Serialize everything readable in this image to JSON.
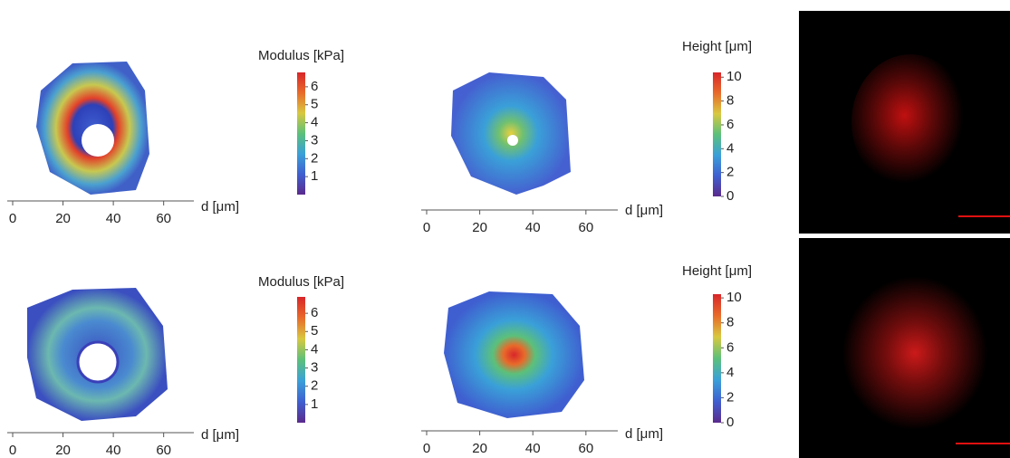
{
  "chart_data": [
    {
      "type": "heatmap",
      "xlabel": "d [μm]",
      "xlim": [
        0,
        72
      ],
      "xticks": [
        0,
        20,
        40,
        60
      ],
      "colorbar": {
        "title": "Modulus [kPa]",
        "lim": [
          0,
          6.8
        ],
        "ticks": [
          1,
          2,
          3,
          4,
          5,
          6
        ]
      },
      "colormap": [
        "#5a2a8c",
        "#3f5fd0",
        "#3aa0d8",
        "#5cc07a",
        "#d8c840",
        "#e86a2a",
        "#d8262a"
      ]
    },
    {
      "type": "heatmap",
      "xlabel": "d [μm]",
      "xlim": [
        0,
        72
      ],
      "xticks": [
        0,
        20,
        40,
        60
      ],
      "colorbar": {
        "title": "Height [μm]",
        "lim": [
          0,
          10.4
        ],
        "ticks": [
          0,
          2,
          4,
          6,
          8,
          10
        ]
      },
      "colormap": [
        "#5a2a8c",
        "#3f5fd0",
        "#3aa0d8",
        "#5cc07a",
        "#d8c840",
        "#e86a2a",
        "#d8262a"
      ]
    },
    {
      "type": "heatmap",
      "xlabel": "d [μm]",
      "xlim": [
        0,
        72
      ],
      "xticks": [
        0,
        20,
        40,
        60
      ],
      "colorbar": {
        "title": "Modulus [kPa]",
        "lim": [
          0,
          6.9
        ],
        "ticks": [
          1,
          2,
          3,
          4,
          5,
          6
        ]
      },
      "colormap": [
        "#5a2a8c",
        "#3f5fd0",
        "#3aa0d8",
        "#5cc07a",
        "#d8c840",
        "#e86a2a",
        "#d8262a"
      ]
    },
    {
      "type": "heatmap",
      "xlabel": "d [μm]",
      "xlim": [
        0,
        72
      ],
      "xticks": [
        0,
        20,
        40,
        60
      ],
      "colorbar": {
        "title": "Height [μm]",
        "lim": [
          0,
          10.3
        ],
        "ticks": [
          0,
          2,
          4,
          6,
          8,
          10
        ]
      },
      "colormap": [
        "#5a2a8c",
        "#3f5fd0",
        "#3aa0d8",
        "#5cc07a",
        "#d8c840",
        "#e86a2a",
        "#d8262a"
      ]
    }
  ]
}
